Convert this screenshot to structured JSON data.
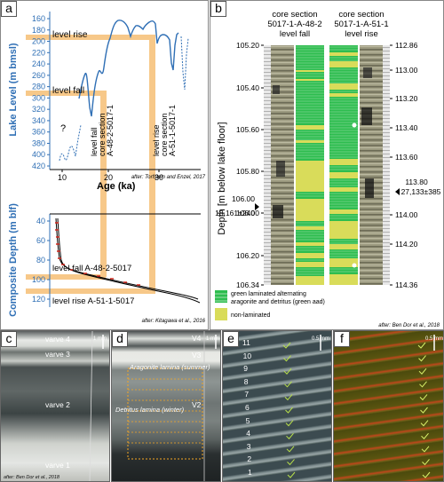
{
  "panel_a": {
    "label": "a",
    "top_chart": {
      "ylabel": "Lake Level (m bmsl)",
      "yticks": [
        "160",
        "180",
        "200",
        "220",
        "240",
        "260",
        "280",
        "300",
        "320",
        "340",
        "360",
        "380",
        "400",
        "420"
      ],
      "xticks": [
        "10",
        "20",
        "30"
      ],
      "xlabel": "Age (ka)",
      "question_mark": "?",
      "level_rise_label": "level rise",
      "level_fall_label": "level fall",
      "annot_fall": [
        "level fall",
        "core section",
        "A-48-2-5017-1"
      ],
      "annot_rise": [
        "level rise",
        "core section",
        "A-51-1-5017-1"
      ],
      "source": "after: Torfstein and Enzel, 2017"
    },
    "bottom_chart": {
      "ylabel": "Composite Depth (m blf)",
      "yticks": [
        "40",
        "60",
        "80",
        "100",
        "120"
      ],
      "level_fall_label": "level fall  A-48-2-5017",
      "level_rise_label": "level rise  A-51-1-5017",
      "source": "after: Kitagawa et al., 2016"
    }
  },
  "panel_b": {
    "label": "b",
    "ylabel": "Depth [m below lake floor]",
    "col1_title": [
      "core section",
      "5017-1-A-48-2",
      "level fall"
    ],
    "col2_title": [
      "core section",
      "5017-1-A-51-1",
      "level rise"
    ],
    "left_ticks": [
      "105.20",
      "105.40",
      "105.60",
      "105.80",
      "106.00",
      "106.20",
      "106.34"
    ],
    "right_ticks": [
      "112.86",
      "113.00",
      "113.20",
      "113.40",
      "113.60",
      "113.80",
      "114.00",
      "114.20",
      "114.36"
    ],
    "left_date": [
      "106.00",
      "18,161±240"
    ],
    "right_date": [
      "113.80",
      "27,133±385"
    ],
    "legend_green": [
      "green laminated alternating",
      "aragonite and detritus (green aad)"
    ],
    "legend_yellow": "non-laminated",
    "source": "after: Ben Dor et al., 2018"
  },
  "photos": {
    "c": {
      "label": "c",
      "varves": [
        "varve 4",
        "varve 3",
        "varve 2",
        "varve 1"
      ],
      "scale": "1 mm",
      "source": "after: Ben Dor et al., 2018"
    },
    "d": {
      "label": "d",
      "v": [
        "V4",
        "V3",
        "V2"
      ],
      "aragonite": "Aragonite lamina (summer)",
      "detritus": "Detritus lamina (winter)",
      "scale": "1 mm"
    },
    "e": {
      "label": "e",
      "numbers": [
        "11",
        "10",
        "9",
        "8",
        "7",
        "6",
        "5",
        "4",
        "3",
        "2",
        "1"
      ],
      "scale": "0.5 mm"
    },
    "f": {
      "label": "f",
      "scale": "0.5 mm"
    }
  },
  "colors": {
    "blue": "#2f6fb5",
    "orange": "#f7c889",
    "green": "#2ebd4f",
    "yellow": "#d9dc5a"
  }
}
